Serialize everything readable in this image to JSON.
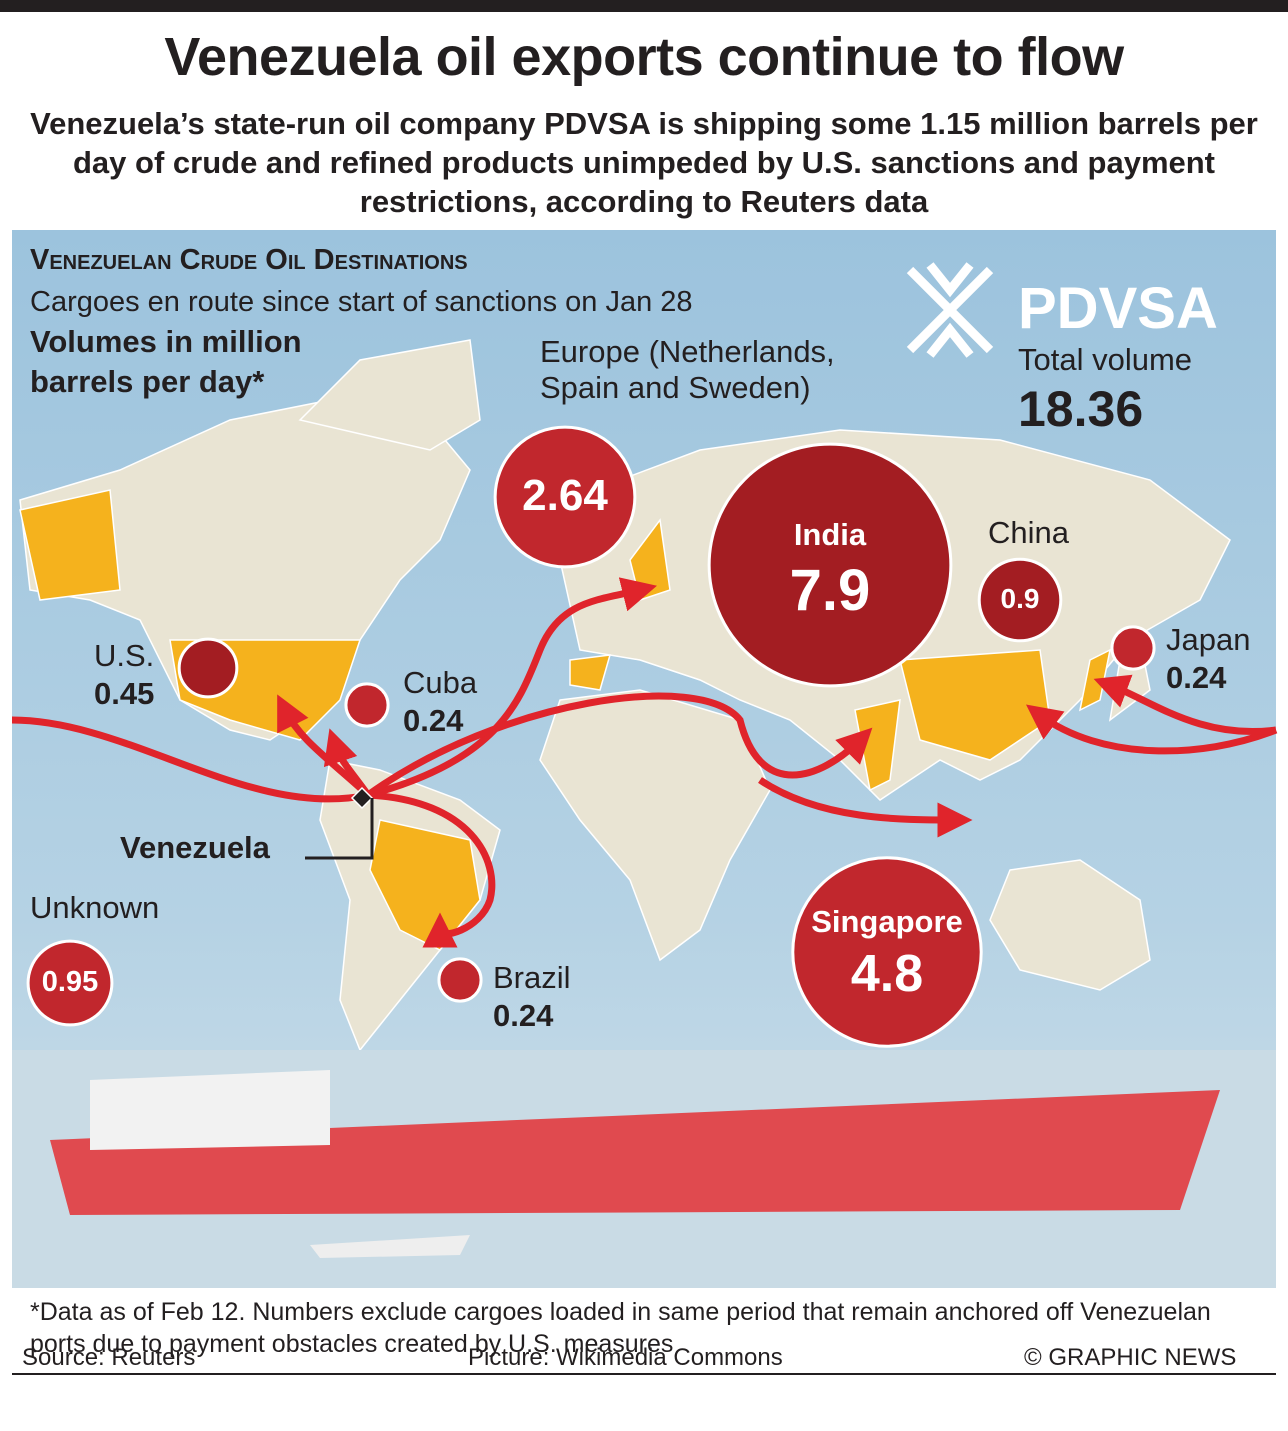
{
  "header": {
    "title": "Venezuela oil exports continue to flow",
    "subtitle": "Venezuela’s state-run oil company PDVSA is shipping some 1.15 million barrels per day of crude and refined products unimpeded by U.S. sanctions and payment restrictions, according to Reuters data"
  },
  "map": {
    "heading": "Venezuelan Crude Oil Destinations",
    "note": "Cargoes en route since start of sanctions on Jan 28",
    "units": "Volumes in million barrels per day*",
    "logo": "PDVSA",
    "total_label": "Total volume",
    "total": 18.36,
    "origin": "Venezuela",
    "destinations": [
      {
        "name": "Europe (Netherlands, Spain and Sweden)",
        "value": 2.64
      },
      {
        "name": "India",
        "value": 7.9
      },
      {
        "name": "China",
        "value": 0.9
      },
      {
        "name": "Japan",
        "value": 0.24
      },
      {
        "name": "U.S.",
        "value": 0.45
      },
      {
        "name": "Cuba",
        "value": 0.24
      },
      {
        "name": "Brazil",
        "value": 0.24
      },
      {
        "name": "Singapore",
        "value": 4.8
      },
      {
        "name": "Unknown",
        "value": 0.95
      }
    ]
  },
  "footer": {
    "footnote": "*Data as of Feb 12. Numbers exclude cargoes loaded in same period that remain anchored off Venezuelan ports due to payment obstacles created by U.S. measures",
    "source": "Source: Reuters",
    "picture": "Picture: Wikimedia Commons",
    "credit": "© GRAPHIC NEWS"
  }
}
